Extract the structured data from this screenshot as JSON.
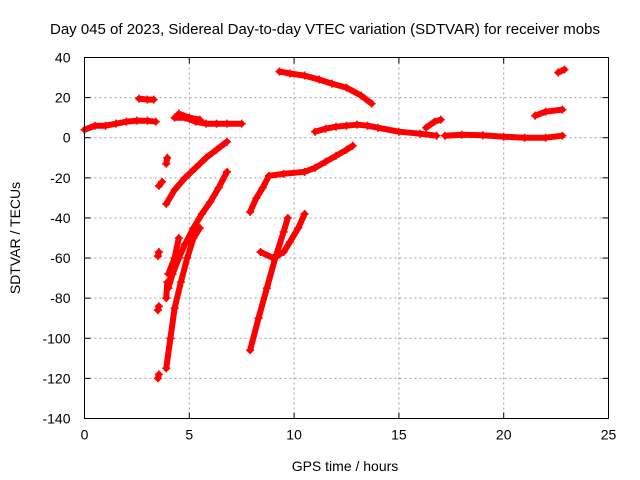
{
  "chart_data": {
    "type": "scatter",
    "title": "Day 045 of 2023, Sidereal Day-to-day VTEC variation (SDTVAR) for receiver mobs",
    "xlabel": "GPS time / hours",
    "ylabel": "SDTVAR / TECUs",
    "xlim": [
      0,
      25
    ],
    "ylim": [
      -140,
      40
    ],
    "xticks": [
      0,
      5,
      10,
      15,
      20,
      25
    ],
    "yticks": [
      -140,
      -120,
      -100,
      -80,
      -60,
      -40,
      -20,
      0,
      20,
      40
    ],
    "grid": true,
    "color": "#ff0000",
    "series": [
      {
        "points": [
          [
            0.0,
            4
          ],
          [
            0.5,
            6
          ],
          [
            1.0,
            6
          ],
          [
            1.5,
            7
          ],
          [
            2.0,
            8
          ],
          [
            2.5,
            8.5
          ],
          [
            3.0,
            8.5
          ],
          [
            3.4,
            8
          ]
        ]
      },
      {
        "points": [
          [
            2.6,
            19.5
          ],
          [
            3.0,
            19
          ],
          [
            3.3,
            19
          ]
        ]
      },
      {
        "points": [
          [
            4.3,
            10
          ],
          [
            4.8,
            10
          ],
          [
            5.3,
            8
          ],
          [
            5.8,
            7
          ],
          [
            6.3,
            7
          ],
          [
            6.8,
            7
          ],
          [
            7.5,
            7
          ]
        ]
      },
      {
        "points": [
          [
            4.5,
            12
          ],
          [
            5.0,
            10
          ],
          [
            5.5,
            9
          ]
        ]
      },
      {
        "points": [
          [
            9.3,
            33
          ],
          [
            9.8,
            32
          ],
          [
            10.5,
            31
          ],
          [
            11.2,
            29
          ],
          [
            11.8,
            27
          ],
          [
            12.5,
            25
          ],
          [
            13.2,
            21
          ],
          [
            13.7,
            17
          ]
        ]
      },
      {
        "points": [
          [
            11.0,
            3
          ],
          [
            11.5,
            4.5
          ],
          [
            12.0,
            5.5
          ],
          [
            12.5,
            6
          ],
          [
            13.0,
            6.5
          ],
          [
            13.5,
            6
          ],
          [
            14.0,
            5
          ],
          [
            15.0,
            3
          ],
          [
            16.0,
            2
          ],
          [
            16.8,
            1
          ]
        ]
      },
      {
        "points": [
          [
            16.3,
            5
          ],
          [
            16.7,
            8
          ],
          [
            17.0,
            9
          ]
        ]
      },
      {
        "points": [
          [
            17.2,
            1
          ],
          [
            18.0,
            1.5
          ],
          [
            19.0,
            1.2
          ],
          [
            20.0,
            0.5
          ],
          [
            21.0,
            0
          ],
          [
            22.0,
            0
          ],
          [
            22.8,
            1
          ]
        ]
      },
      {
        "points": [
          [
            21.5,
            11
          ],
          [
            22.0,
            13
          ],
          [
            22.8,
            14
          ]
        ]
      },
      {
        "points": [
          [
            22.6,
            32.5
          ],
          [
            22.9,
            34
          ]
        ]
      },
      {
        "points": [
          [
            3.9,
            -33
          ],
          [
            4.3,
            -26
          ],
          [
            4.8,
            -20
          ],
          [
            5.3,
            -15
          ],
          [
            5.8,
            -10
          ],
          [
            6.3,
            -6
          ],
          [
            6.8,
            -2
          ]
        ]
      },
      {
        "points": [
          [
            4.0,
            -75
          ],
          [
            4.2,
            -68
          ],
          [
            4.5,
            -60
          ],
          [
            4.8,
            -53
          ],
          [
            5.2,
            -45
          ],
          [
            5.6,
            -38
          ],
          [
            6.0,
            -32
          ],
          [
            6.4,
            -25
          ],
          [
            6.8,
            -17
          ]
        ]
      },
      {
        "points": [
          [
            3.9,
            -115
          ],
          [
            4.1,
            -100
          ],
          [
            4.3,
            -85
          ],
          [
            4.6,
            -72
          ],
          [
            4.9,
            -60
          ],
          [
            5.2,
            -50
          ],
          [
            5.5,
            -45
          ]
        ]
      },
      {
        "points": [
          [
            4.0,
            -68
          ],
          [
            4.3,
            -60
          ],
          [
            4.5,
            -50
          ]
        ]
      },
      {
        "points": [
          [
            3.5,
            -120
          ],
          [
            3.55,
            -118
          ]
        ]
      },
      {
        "points": [
          [
            3.5,
            -86
          ],
          [
            3.55,
            -84
          ]
        ]
      },
      {
        "points": [
          [
            3.5,
            -59
          ],
          [
            3.55,
            -57
          ]
        ]
      },
      {
        "points": [
          [
            3.55,
            -24
          ],
          [
            3.7,
            -22
          ]
        ]
      },
      {
        "points": [
          [
            3.9,
            -13
          ],
          [
            3.95,
            -10
          ]
        ]
      },
      {
        "points": [
          [
            3.9,
            -80
          ],
          [
            3.95,
            -72
          ]
        ]
      },
      {
        "points": [
          [
            7.9,
            -37
          ],
          [
            8.2,
            -30
          ],
          [
            8.5,
            -25
          ],
          [
            8.8,
            -19
          ],
          [
            9.5,
            -18
          ],
          [
            10.5,
            -17
          ],
          [
            11.0,
            -15
          ],
          [
            11.5,
            -12
          ],
          [
            12.0,
            -9
          ],
          [
            12.5,
            -6
          ],
          [
            12.8,
            -4
          ]
        ]
      },
      {
        "points": [
          [
            7.9,
            -106
          ],
          [
            8.3,
            -90
          ],
          [
            8.7,
            -75
          ],
          [
            9.1,
            -60
          ],
          [
            9.5,
            -47
          ],
          [
            9.7,
            -40
          ]
        ]
      },
      {
        "points": [
          [
            8.4,
            -57
          ],
          [
            9.0,
            -60
          ],
          [
            9.5,
            -57
          ],
          [
            9.8,
            -52
          ],
          [
            10.2,
            -45
          ],
          [
            10.5,
            -38
          ]
        ]
      }
    ]
  }
}
